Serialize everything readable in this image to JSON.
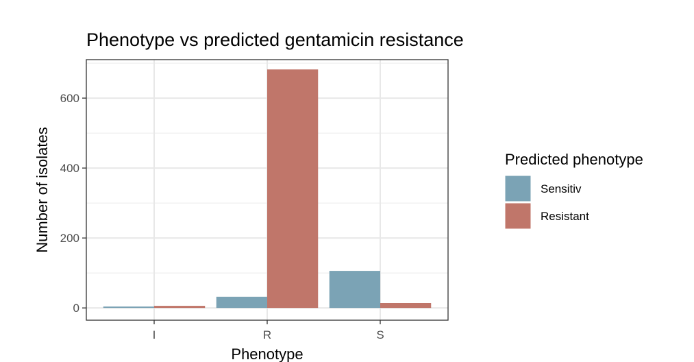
{
  "chart_data": {
    "type": "bar",
    "title": "Phenotype vs predicted gentamicin resistance",
    "xlabel": "Phenotype",
    "ylabel": "Number of isolates",
    "categories": [
      "I",
      "R",
      "S"
    ],
    "series": [
      {
        "name": "Sensitiv",
        "values": [
          4,
          32,
          106
        ],
        "color": "#7ba3b5"
      },
      {
        "name": "Resistant",
        "values": [
          6,
          682,
          14
        ],
        "color": "#c0766a"
      }
    ],
    "yticks": [
      0,
      200,
      400,
      600
    ],
    "ylim": [
      -35,
      710
    ],
    "grid": true,
    "legend": {
      "title": "Predicted phenotype",
      "position": "right"
    }
  }
}
